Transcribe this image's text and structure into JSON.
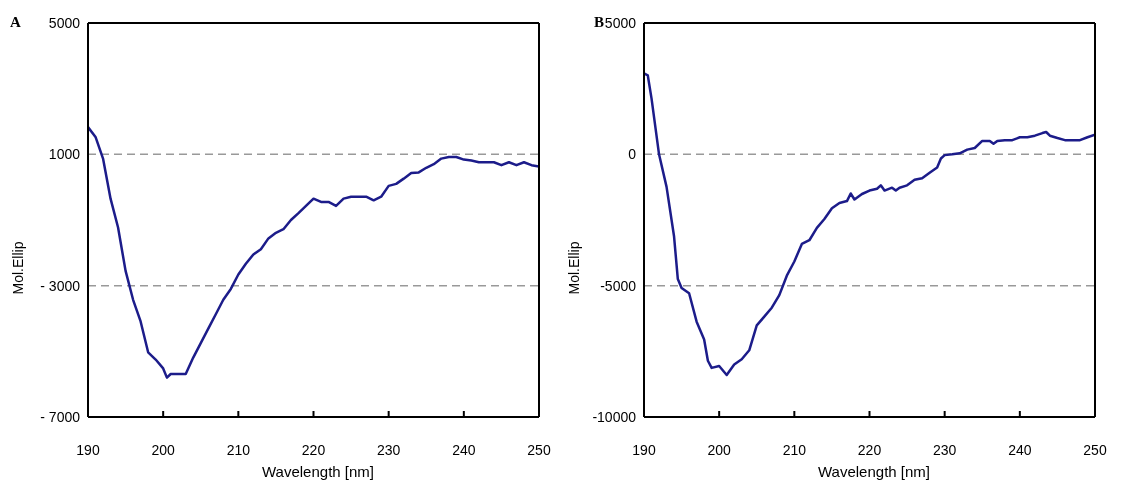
{
  "chart_data": [
    {
      "type": "line",
      "title": "A",
      "xlabel": "Wavelength [nm]",
      "ylabel": "Mol.Ellip",
      "xlim": [
        190,
        250
      ],
      "xticks": [
        190,
        200,
        210,
        220,
        230,
        240,
        250
      ],
      "ylim": [
        -7000,
        5000
      ],
      "yticks": [
        {
          "value": -7000,
          "label": "- 7000"
        },
        {
          "value": -3000,
          "label": "- 3000"
        },
        1000,
        5000
      ],
      "grid": "y",
      "marker": "none",
      "line_style": "solid",
      "x": [
        190,
        191,
        192,
        193,
        194,
        195,
        196,
        197,
        198,
        199,
        200,
        200.5,
        201,
        203,
        204,
        205,
        206,
        207,
        208,
        209,
        210,
        211,
        212,
        213,
        214,
        215,
        216,
        217,
        218,
        219,
        220,
        221,
        222,
        223,
        224,
        225,
        227,
        228,
        229,
        230,
        231,
        232,
        233,
        234,
        235,
        236,
        237,
        238,
        239,
        240,
        241,
        242,
        244,
        245,
        246,
        247,
        248,
        249,
        250
      ],
      "series": [
        {
          "color": "#1c1c8a",
          "values": [
            1830,
            1530,
            870,
            -350,
            -1230,
            -2550,
            -3430,
            -4090,
            -5030,
            -5250,
            -5520,
            -5800,
            -5690,
            -5690,
            -5190,
            -4750,
            -4310,
            -3870,
            -3430,
            -3100,
            -2660,
            -2330,
            -2050,
            -1890,
            -1560,
            -1390,
            -1280,
            -1000,
            -790,
            -570,
            -350,
            -450,
            -450,
            -570,
            -350,
            -290,
            -290,
            -400,
            -290,
            40,
            100,
            260,
            430,
            450,
            590,
            700,
            870,
            920,
            920,
            840,
            810,
            760,
            760,
            670,
            760,
            670,
            760,
            670,
            630
          ]
        }
      ]
    },
    {
      "type": "line",
      "title": "B",
      "xlabel": "Wavelength [nm]",
      "ylabel": "Mol.Ellip",
      "xlim": [
        190,
        250
      ],
      "xticks": [
        190,
        200,
        210,
        220,
        230,
        240,
        250
      ],
      "ylim": [
        -10000,
        5000
      ],
      "yticks": [
        -10000,
        -5000,
        0,
        5000
      ],
      "grid": "y",
      "marker": "none",
      "line_style": "solid",
      "x": [
        190,
        190.5,
        191,
        192,
        193,
        194,
        194.5,
        195,
        196,
        197,
        198,
        198.5,
        199,
        200,
        201,
        202,
        203,
        204,
        205,
        206,
        207,
        208,
        209,
        210,
        211,
        212,
        213,
        214,
        215,
        216,
        217,
        217.5,
        218,
        219,
        220,
        221,
        221.5,
        222,
        223,
        223.5,
        224,
        225,
        226,
        227,
        228,
        229,
        229.5,
        230,
        231,
        232,
        233,
        234,
        235,
        236,
        236.5,
        237,
        238,
        239,
        240,
        241,
        242,
        243,
        243.5,
        244,
        245,
        246,
        248,
        249,
        250
      ],
      "series": [
        {
          "color": "#1c1c8a",
          "values": [
            3080,
            3010,
            2130,
            0,
            -1240,
            -3130,
            -4750,
            -5090,
            -5290,
            -6370,
            -7050,
            -7860,
            -8130,
            -8060,
            -8400,
            -8000,
            -7800,
            -7460,
            -6510,
            -6180,
            -5840,
            -5360,
            -4620,
            -4080,
            -3410,
            -3270,
            -2800,
            -2460,
            -2050,
            -1850,
            -1780,
            -1490,
            -1720,
            -1510,
            -1380,
            -1310,
            -1180,
            -1380,
            -1270,
            -1380,
            -1270,
            -1180,
            -970,
            -910,
            -700,
            -500,
            -160,
            -30,
            0,
            40,
            180,
            240,
            510,
            510,
            400,
            510,
            540,
            540,
            650,
            650,
            710,
            810,
            850,
            710,
            620,
            540,
            540,
            650,
            750
          ]
        }
      ]
    }
  ]
}
